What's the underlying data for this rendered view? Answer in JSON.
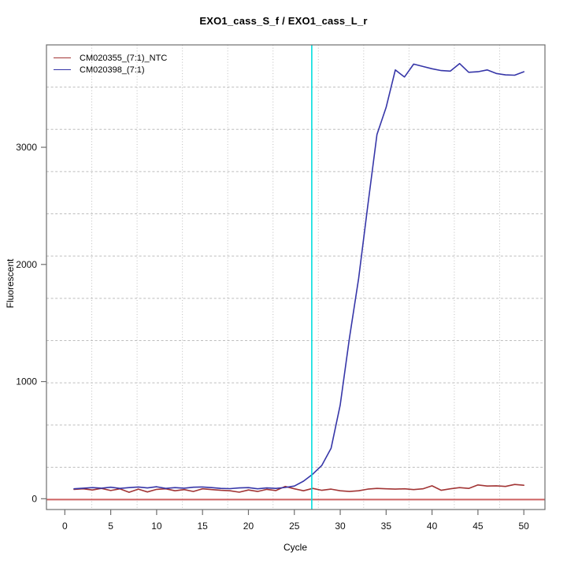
{
  "chart_data": {
    "type": "line",
    "title": "EXO1_cass_S_f / EXO1_cass_L_r",
    "xlabel": "Cycle",
    "ylabel": "Fluorescent",
    "x": [
      1,
      2,
      3,
      4,
      5,
      6,
      7,
      8,
      9,
      10,
      11,
      12,
      13,
      14,
      15,
      16,
      17,
      18,
      19,
      20,
      21,
      22,
      23,
      24,
      25,
      26,
      27,
      28,
      29,
      30,
      31,
      32,
      33,
      34,
      35,
      36,
      37,
      38,
      39,
      40,
      41,
      42,
      43,
      44,
      45,
      46,
      47,
      48,
      49,
      50
    ],
    "series": [
      {
        "name": "CM020355_(7:1)_NTC",
        "color": "#a23535",
        "values": [
          80,
          85,
          75,
          88,
          70,
          85,
          55,
          82,
          58,
          80,
          85,
          68,
          78,
          62,
          85,
          78,
          72,
          68,
          56,
          75,
          62,
          80,
          70,
          105,
          85,
          68,
          88,
          72,
          82,
          68,
          62,
          68,
          82,
          88,
          85,
          82,
          85,
          78,
          85,
          110,
          72,
          85,
          95,
          88,
          118,
          108,
          110,
          105,
          122,
          115
        ]
      },
      {
        "name": "CM020398_(7:1)",
        "color": "#3636a8",
        "values": [
          85,
          90,
          95,
          90,
          98,
          88,
          95,
          100,
          92,
          102,
          88,
          95,
          90,
          98,
          100,
          95,
          88,
          86,
          92,
          95,
          85,
          92,
          88,
          96,
          108,
          150,
          210,
          285,
          430,
          800,
          1370,
          1880,
          2500,
          3110,
          3340,
          3660,
          3600,
          3710,
          3690,
          3670,
          3655,
          3650,
          3715,
          3640,
          3645,
          3660,
          3630,
          3618,
          3615,
          3645
        ]
      }
    ],
    "x_ticks": [
      0,
      5,
      10,
      15,
      20,
      25,
      30,
      35,
      40,
      45,
      50
    ],
    "y_ticks": [
      0,
      1000,
      2000,
      3000
    ],
    "xlim": [
      -2,
      52.3
    ],
    "ylim": [
      -92,
      3874
    ],
    "grid": {
      "visible": true,
      "nx": 10,
      "ny": 10,
      "color": "#bdbdbd",
      "style": "dotted"
    },
    "threshold_cycle_line": {
      "x": 26.9,
      "color": "#00dede"
    },
    "baseline_line": {
      "y": 0,
      "color": "#cd6262"
    },
    "legend": {
      "position": "top-left",
      "entries": [
        "CM020355_(7:1)_NTC",
        "CM020398_(7:1)"
      ]
    },
    "axis_color": "#6e6e6e",
    "tick_label_color": "#111111"
  }
}
